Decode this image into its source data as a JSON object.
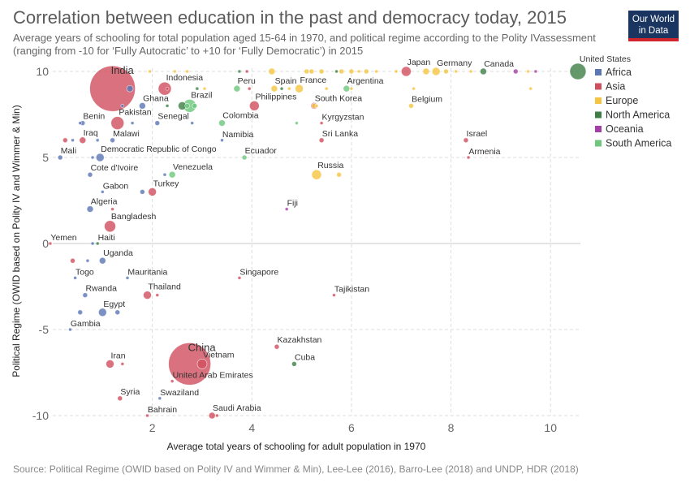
{
  "header": {
    "title": "Correlation between education in the past and democracy today, 2015",
    "subtitle": "Average years of schooling for total population aged 15-64 in 1970, and political regime according to the Polity IVassessment (ranging from -10 for ‘Fully Autocratic’ to +10 for ‘Fully Democratic’) in 2015"
  },
  "logo": {
    "line1": "Our World",
    "line2": "in Data",
    "bg": "#1a3560",
    "accent": "#d0252d"
  },
  "footer": {
    "source": "Source: Political Regime (OWID based on Polity IV and Wimmer & Min), Lee-Lee (2016), Barro-Lee (2018) and UNDP, HDR (2018)"
  },
  "chart_data": {
    "type": "scatter",
    "xlabel": "Average total years of schooling for adult population in 1970",
    "ylabel": "Political Regime (OWID based on Polity IV and Wimmer & Min)",
    "xlim": [
      0,
      10.6
    ],
    "ylim": [
      -10,
      10
    ],
    "xticks": [
      2,
      4,
      6,
      8,
      10
    ],
    "yticks": [
      -10,
      -5,
      0,
      5,
      10
    ],
    "grid": true,
    "legend_position": "right",
    "legend": [
      {
        "name": "Africa",
        "color": "#5a76b5"
      },
      {
        "name": "Asia",
        "color": "#cf4f5e"
      },
      {
        "name": "Europe",
        "color": "#f5c542"
      },
      {
        "name": "North America",
        "color": "#3f7f47"
      },
      {
        "name": "Oceania",
        "color": "#a63ea7"
      },
      {
        "name": "South America",
        "color": "#6ec77d"
      }
    ],
    "points": [
      {
        "label": "India",
        "x": 1.2,
        "y": 9,
        "region": "Asia",
        "size": 28
      },
      {
        "label": "Indonesia",
        "x": 2.25,
        "y": 9,
        "region": "Asia",
        "size": 8
      },
      {
        "label": "Peru",
        "x": 3.7,
        "y": 9,
        "region": "South America",
        "size": 4
      },
      {
        "label": "Spain",
        "x": 4.45,
        "y": 9,
        "region": "Europe",
        "size": 4
      },
      {
        "label": "France",
        "x": 4.95,
        "y": 9,
        "region": "Europe",
        "size": 5
      },
      {
        "label": "Argentina",
        "x": 5.9,
        "y": 9,
        "region": "South America",
        "size": 4
      },
      {
        "label": "Japan",
        "x": 7.1,
        "y": 10,
        "region": "Asia",
        "size": 6
      },
      {
        "label": "Germany",
        "x": 7.7,
        "y": 10,
        "region": "Europe",
        "size": 5
      },
      {
        "label": "Canada",
        "x": 8.65,
        "y": 10,
        "region": "North America",
        "size": 4
      },
      {
        "label": "United States",
        "x": 10.55,
        "y": 10,
        "region": "North America",
        "size": 10
      },
      {
        "label": "Ghana",
        "x": 1.8,
        "y": 8,
        "region": "Africa",
        "size": 4
      },
      {
        "label": "Brazil",
        "x": 2.75,
        "y": 8,
        "region": "South America",
        "size": 8
      },
      {
        "label": "Philippines",
        "x": 4.05,
        "y": 8,
        "region": "Asia",
        "size": 6
      },
      {
        "label": "South Korea",
        "x": 5.25,
        "y": 8,
        "region": "Asia",
        "size": 4
      },
      {
        "label": "Belgium",
        "x": 7.2,
        "y": 8,
        "region": "Europe",
        "size": 3
      },
      {
        "label": "Benin",
        "x": 0.6,
        "y": 7,
        "region": "Africa",
        "size": 3
      },
      {
        "label": "Pakistan",
        "x": 1.3,
        "y": 7,
        "region": "Asia",
        "size": 8
      },
      {
        "label": "Senegal",
        "x": 2.1,
        "y": 7,
        "region": "Africa",
        "size": 3
      },
      {
        "label": "Colombia",
        "x": 3.4,
        "y": 7,
        "region": "South America",
        "size": 4
      },
      {
        "label": "Kyrgyzstan",
        "x": 5.4,
        "y": 7,
        "region": "Asia",
        "size": 2
      },
      {
        "label": "Iraq",
        "x": 0.6,
        "y": 6,
        "region": "Asia",
        "size": 4
      },
      {
        "label": "Malawi",
        "x": 1.2,
        "y": 6,
        "region": "Africa",
        "size": 3
      },
      {
        "label": "Namibia",
        "x": 3.4,
        "y": 6,
        "region": "Africa",
        "size": 2
      },
      {
        "label": "Sri Lanka",
        "x": 5.4,
        "y": 6,
        "region": "Asia",
        "size": 3
      },
      {
        "label": "Israel",
        "x": 8.3,
        "y": 6,
        "region": "Asia",
        "size": 3
      },
      {
        "label": "Mali",
        "x": 0.15,
        "y": 5,
        "region": "Africa",
        "size": 3
      },
      {
        "label": "Democratic Republic of Congo",
        "x": 0.95,
        "y": 5,
        "region": "Africa",
        "size": 5
      },
      {
        "label": "Ecuador",
        "x": 3.85,
        "y": 5,
        "region": "South America",
        "size": 3
      },
      {
        "label": "Armenia",
        "x": 8.35,
        "y": 5,
        "region": "Asia",
        "size": 2
      },
      {
        "label": "Cote d'Ivoire",
        "x": 0.75,
        "y": 4,
        "region": "Africa",
        "size": 3
      },
      {
        "label": "Venezuela",
        "x": 2.4,
        "y": 4,
        "region": "South America",
        "size": 4
      },
      {
        "label": "Russia",
        "x": 5.3,
        "y": 4,
        "region": "Europe",
        "size": 6
      },
      {
        "label": "Gabon",
        "x": 1.0,
        "y": 3,
        "region": "Africa",
        "size": 2
      },
      {
        "label": "Turkey",
        "x": 2.0,
        "y": 3,
        "region": "Asia",
        "size": 5
      },
      {
        "label": "Algeria",
        "x": 0.75,
        "y": 2,
        "region": "Africa",
        "size": 4
      },
      {
        "label": "Fiji",
        "x": 4.7,
        "y": 2,
        "region": "Oceania",
        "size": 2
      },
      {
        "label": "Bangladesh",
        "x": 1.15,
        "y": 1,
        "region": "Asia",
        "size": 7
      },
      {
        "label": "Yemen",
        "x": -0.05,
        "y": 0,
        "region": "Asia",
        "size": 2
      },
      {
        "label": "Haiti",
        "x": 0.9,
        "y": 0,
        "region": "North America",
        "size": 2
      },
      {
        "label": "Uganda",
        "x": 1.0,
        "y": -1,
        "region": "Africa",
        "size": 4
      },
      {
        "label": "Togo",
        "x": 0.45,
        "y": -2,
        "region": "Africa",
        "size": 2
      },
      {
        "label": "Mauritania",
        "x": 1.5,
        "y": -2,
        "region": "Africa",
        "size": 2
      },
      {
        "label": "Singapore",
        "x": 3.75,
        "y": -2,
        "region": "Asia",
        "size": 2
      },
      {
        "label": "Rwanda",
        "x": 0.65,
        "y": -3,
        "region": "Africa",
        "size": 3
      },
      {
        "label": "Thailand",
        "x": 1.9,
        "y": -3,
        "region": "Asia",
        "size": 5
      },
      {
        "label": "Tajikistan",
        "x": 5.65,
        "y": -3,
        "region": "Asia",
        "size": 2
      },
      {
        "label": "Egypt",
        "x": 1.0,
        "y": -4,
        "region": "Africa",
        "size": 5
      },
      {
        "label": "Gambia",
        "x": 0.35,
        "y": -5,
        "region": "Africa",
        "size": 2
      },
      {
        "label": "China",
        "x": 2.75,
        "y": -7,
        "region": "Asia",
        "size": 26
      },
      {
        "label": "Vietnam",
        "x": 3.0,
        "y": -7,
        "region": "Asia",
        "size": 6
      },
      {
        "label": "Iran",
        "x": 1.15,
        "y": -7,
        "region": "Asia",
        "size": 5
      },
      {
        "label": "Kazakhstan",
        "x": 4.5,
        "y": -6,
        "region": "Asia",
        "size": 3
      },
      {
        "label": "Cuba",
        "x": 4.85,
        "y": -7,
        "region": "North America",
        "size": 3
      },
      {
        "label": "United Arab Emirates",
        "x": 2.4,
        "y": -8,
        "region": "Asia",
        "size": 2
      },
      {
        "label": "Syria",
        "x": 1.35,
        "y": -9,
        "region": "Asia",
        "size": 3
      },
      {
        "label": "Swaziland",
        "x": 2.15,
        "y": -9,
        "region": "Africa",
        "size": 2
      },
      {
        "label": "Bahrain",
        "x": 1.9,
        "y": -10,
        "region": "Asia",
        "size": 2
      },
      {
        "label": "Saudi Arabia",
        "x": 3.2,
        "y": -10,
        "region": "Asia",
        "size": 4
      },
      {
        "label": "",
        "x": 1.55,
        "y": 9,
        "region": "Africa",
        "size": 4
      },
      {
        "label": "",
        "x": 2.7,
        "y": 8,
        "region": "South America",
        "size": 3
      },
      {
        "label": "",
        "x": 2.85,
        "y": 8,
        "region": "South America",
        "size": 3
      },
      {
        "label": "",
        "x": 2.6,
        "y": 8,
        "region": "North America",
        "size": 5
      },
      {
        "label": "",
        "x": 2.9,
        "y": 9,
        "region": "North America",
        "size": 2
      },
      {
        "label": "",
        "x": 3.05,
        "y": 9,
        "region": "Europe",
        "size": 2
      },
      {
        "label": "",
        "x": 3.9,
        "y": 10,
        "region": "Asia",
        "size": 2
      },
      {
        "label": "",
        "x": 3.75,
        "y": 10,
        "region": "North America",
        "size": 2
      },
      {
        "label": "",
        "x": 3.95,
        "y": 9,
        "region": "Asia",
        "size": 2
      },
      {
        "label": "",
        "x": 4.4,
        "y": 10,
        "region": "Europe",
        "size": 4
      },
      {
        "label": "",
        "x": 4.6,
        "y": 9,
        "region": "North America",
        "size": 2
      },
      {
        "label": "",
        "x": 4.75,
        "y": 9,
        "region": "Europe",
        "size": 2
      },
      {
        "label": "",
        "x": 5.1,
        "y": 10,
        "region": "Europe",
        "size": 3
      },
      {
        "label": "",
        "x": 5.2,
        "y": 10,
        "region": "Europe",
        "size": 3
      },
      {
        "label": "",
        "x": 5.4,
        "y": 10,
        "region": "Europe",
        "size": 3
      },
      {
        "label": "",
        "x": 5.5,
        "y": 9,
        "region": "Europe",
        "size": 2
      },
      {
        "label": "",
        "x": 5.7,
        "y": 10,
        "region": "North America",
        "size": 2
      },
      {
        "label": "",
        "x": 5.8,
        "y": 10,
        "region": "Europe",
        "size": 3
      },
      {
        "label": "",
        "x": 6.0,
        "y": 10,
        "region": "Europe",
        "size": 3
      },
      {
        "label": "",
        "x": 6.15,
        "y": 10,
        "region": "Europe",
        "size": 2
      },
      {
        "label": "",
        "x": 6.3,
        "y": 10,
        "region": "Europe",
        "size": 3
      },
      {
        "label": "",
        "x": 6.5,
        "y": 10,
        "region": "Europe",
        "size": 2
      },
      {
        "label": "",
        "x": 6.9,
        "y": 10,
        "region": "Europe",
        "size": 2
      },
      {
        "label": "",
        "x": 7.5,
        "y": 10,
        "region": "Europe",
        "size": 4
      },
      {
        "label": "",
        "x": 7.9,
        "y": 10,
        "region": "Europe",
        "size": 3
      },
      {
        "label": "",
        "x": 8.1,
        "y": 10,
        "region": "Europe",
        "size": 2
      },
      {
        "label": "",
        "x": 8.4,
        "y": 10,
        "region": "Europe",
        "size": 2
      },
      {
        "label": "",
        "x": 9.3,
        "y": 10,
        "region": "Oceania",
        "size": 3
      },
      {
        "label": "",
        "x": 9.55,
        "y": 10,
        "region": "Europe",
        "size": 2
      },
      {
        "label": "",
        "x": 9.7,
        "y": 10,
        "region": "Oceania",
        "size": 2
      },
      {
        "label": "",
        "x": 6.0,
        "y": 9,
        "region": "Europe",
        "size": 2
      },
      {
        "label": "",
        "x": 7.25,
        "y": 9,
        "region": "Europe",
        "size": 2
      },
      {
        "label": "",
        "x": 9.6,
        "y": 9,
        "region": "Europe",
        "size": 2
      },
      {
        "label": "",
        "x": 5.3,
        "y": 8,
        "region": "Europe",
        "size": 2
      },
      {
        "label": "",
        "x": 5.25,
        "y": 8,
        "region": "Europe",
        "size": 3
      },
      {
        "label": "",
        "x": 4.9,
        "y": 7,
        "region": "South America",
        "size": 2
      },
      {
        "label": "",
        "x": 2.3,
        "y": 8,
        "region": "North America",
        "size": 2
      },
      {
        "label": "",
        "x": 1.4,
        "y": 8,
        "region": "Africa",
        "size": 2
      },
      {
        "label": "",
        "x": 1.95,
        "y": 10,
        "region": "Europe",
        "size": 2
      },
      {
        "label": "",
        "x": 2.45,
        "y": 10,
        "region": "Europe",
        "size": 2
      },
      {
        "label": "",
        "x": 2.7,
        "y": 10,
        "region": "Europe",
        "size": 2
      },
      {
        "label": "",
        "x": 2.3,
        "y": 9,
        "region": "Asia",
        "size": 2
      },
      {
        "label": "",
        "x": 0.55,
        "y": 7,
        "region": "Africa",
        "size": 2
      },
      {
        "label": "",
        "x": 1.6,
        "y": 7,
        "region": "Africa",
        "size": 2
      },
      {
        "label": "",
        "x": 2.8,
        "y": 7,
        "region": "Africa",
        "size": 2
      },
      {
        "label": "",
        "x": 0.4,
        "y": 6,
        "region": "Africa",
        "size": 2
      },
      {
        "label": "",
        "x": 0.9,
        "y": 6,
        "region": "Africa",
        "size": 2
      },
      {
        "label": "",
        "x": 0.25,
        "y": 6,
        "region": "Asia",
        "size": 3
      },
      {
        "label": "",
        "x": 0.8,
        "y": 5,
        "region": "Africa",
        "size": 2
      },
      {
        "label": "",
        "x": 2.25,
        "y": 4,
        "region": "Africa",
        "size": 2
      },
      {
        "label": "",
        "x": 5.75,
        "y": 4,
        "region": "Europe",
        "size": 3
      },
      {
        "label": "",
        "x": 1.8,
        "y": 3,
        "region": "Africa",
        "size": 3
      },
      {
        "label": "",
        "x": 1.2,
        "y": 2,
        "region": "Asia",
        "size": 2
      },
      {
        "label": "",
        "x": 0.4,
        "y": -1,
        "region": "Asia",
        "size": 3
      },
      {
        "label": "",
        "x": 0.7,
        "y": -1,
        "region": "Africa",
        "size": 2
      },
      {
        "label": "",
        "x": 2.1,
        "y": -3,
        "region": "Asia",
        "size": 2
      },
      {
        "label": "",
        "x": 0.55,
        "y": -4,
        "region": "Africa",
        "size": 3
      },
      {
        "label": "",
        "x": 1.3,
        "y": -4,
        "region": "Africa",
        "size": 3
      },
      {
        "label": "",
        "x": 1.4,
        "y": -7,
        "region": "Asia",
        "size": 2
      },
      {
        "label": "",
        "x": 3.3,
        "y": -10,
        "region": "Asia",
        "size": 2
      },
      {
        "label": "",
        "x": 0.8,
        "y": 0,
        "region": "Africa",
        "size": 2
      }
    ]
  }
}
